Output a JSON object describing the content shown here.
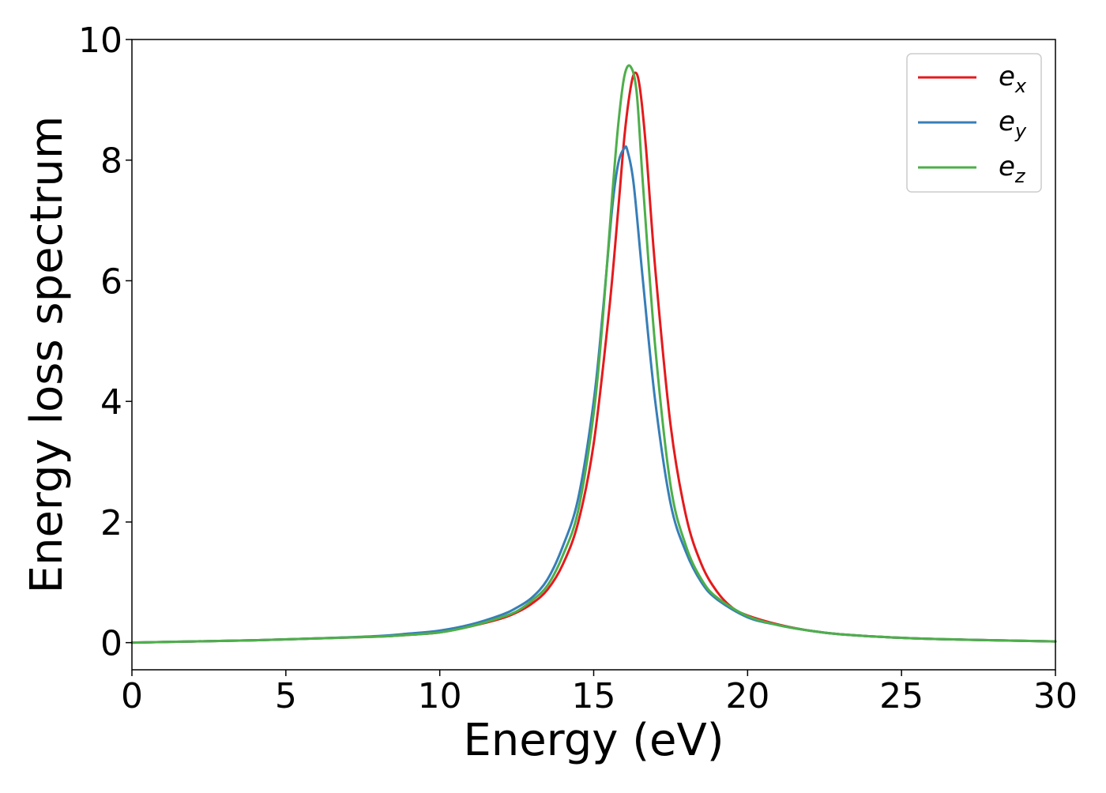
{
  "chart_data": {
    "type": "line",
    "title": "",
    "xlabel": "Energy (eV)",
    "ylabel": "Energy loss spectrum",
    "xlim": [
      0,
      30
    ],
    "ylim": [
      -0.45,
      10
    ],
    "xticks": [
      0,
      5,
      10,
      15,
      20,
      25,
      30
    ],
    "xtick_labels": [
      "0",
      "5",
      "10",
      "15",
      "20",
      "25",
      "30"
    ],
    "yticks": [
      0,
      2,
      4,
      6,
      8,
      10
    ],
    "ytick_labels": [
      "0",
      "2",
      "4",
      "6",
      "8",
      "10"
    ],
    "grid": false,
    "legend_position": "top-right",
    "series": [
      {
        "name": "e_x",
        "legend_base": "e",
        "legend_sub": "x",
        "color": "#e41a1c",
        "x": [
          0,
          2,
          4,
          6,
          8,
          9,
          10,
          11,
          12,
          12.5,
          13,
          13.5,
          14,
          14.5,
          15,
          15.5,
          15.8,
          16.0,
          16.2,
          16.35,
          16.5,
          16.7,
          17.0,
          17.5,
          18,
          18.5,
          19,
          19.5,
          20,
          21,
          22,
          23,
          25,
          27,
          30
        ],
        "y": [
          0.0,
          0.02,
          0.04,
          0.07,
          0.1,
          0.13,
          0.17,
          0.27,
          0.4,
          0.5,
          0.65,
          0.88,
          1.3,
          2.0,
          3.3,
          5.5,
          7.2,
          8.4,
          9.2,
          9.45,
          9.2,
          8.2,
          6.2,
          3.6,
          2.1,
          1.3,
          0.85,
          0.58,
          0.45,
          0.3,
          0.2,
          0.14,
          0.08,
          0.05,
          0.02
        ]
      },
      {
        "name": "e_y",
        "legend_base": "e",
        "legend_sub": "y",
        "color": "#377eb8",
        "x": [
          0,
          2,
          4,
          6,
          8,
          9,
          10,
          11,
          12,
          12.5,
          13,
          13.5,
          14,
          14.5,
          15,
          15.3,
          15.6,
          15.8,
          16.0,
          16.1,
          16.3,
          16.6,
          17.0,
          17.5,
          18,
          18.5,
          19,
          20,
          21,
          22,
          23,
          25,
          27,
          30
        ],
        "y": [
          0.0,
          0.02,
          0.04,
          0.07,
          0.11,
          0.15,
          0.2,
          0.3,
          0.46,
          0.58,
          0.75,
          1.05,
          1.6,
          2.4,
          4.0,
          5.5,
          7.2,
          7.95,
          8.2,
          8.15,
          7.6,
          6.0,
          4.0,
          2.3,
          1.5,
          1.0,
          0.72,
          0.42,
          0.29,
          0.2,
          0.14,
          0.08,
          0.05,
          0.02
        ]
      },
      {
        "name": "e_z",
        "legend_base": "e",
        "legend_sub": "z",
        "color": "#4daf4a",
        "x": [
          0,
          2,
          4,
          6,
          8,
          9,
          10,
          11,
          12,
          12.5,
          13,
          13.5,
          14,
          14.5,
          15,
          15.3,
          15.6,
          15.8,
          16.0,
          16.2,
          16.4,
          16.6,
          17.0,
          17.5,
          18,
          18.5,
          19,
          20,
          21,
          22,
          23,
          25,
          27,
          30
        ],
        "y": [
          0.0,
          0.02,
          0.04,
          0.07,
          0.1,
          0.13,
          0.17,
          0.27,
          0.42,
          0.52,
          0.7,
          0.95,
          1.45,
          2.2,
          3.8,
          5.4,
          7.4,
          8.6,
          9.4,
          9.55,
          9.1,
          7.6,
          4.9,
          2.6,
          1.6,
          1.05,
          0.75,
          0.44,
          0.29,
          0.2,
          0.14,
          0.08,
          0.05,
          0.02
        ]
      }
    ]
  }
}
